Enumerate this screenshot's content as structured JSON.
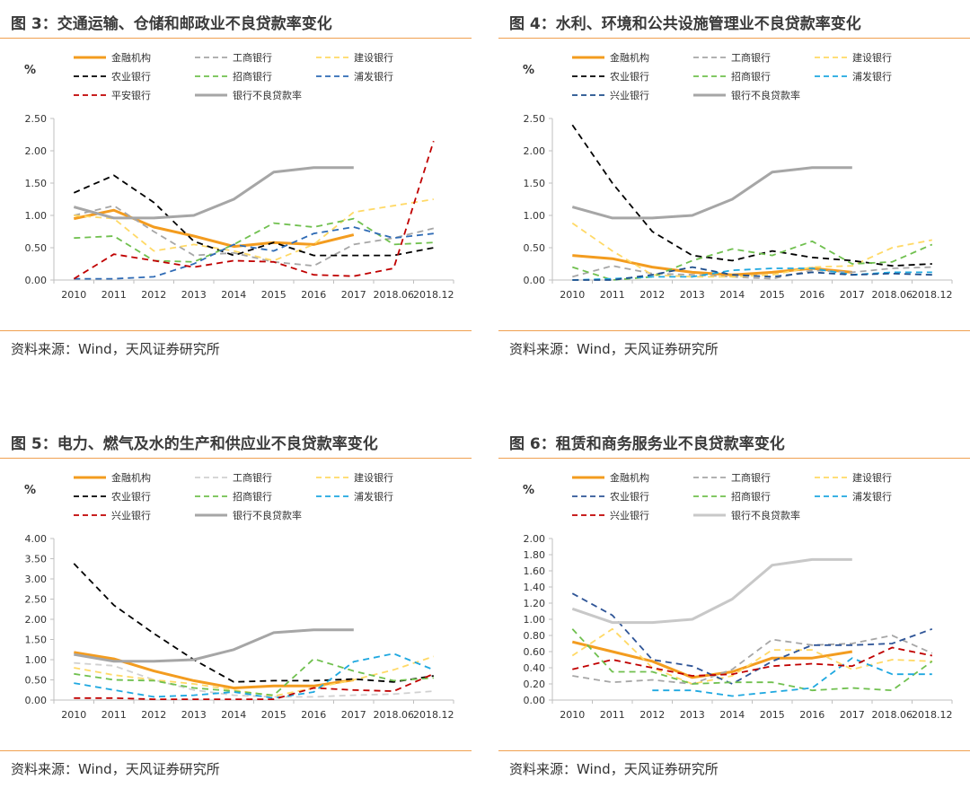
{
  "panels": [
    {
      "title": "图 3：交通运输、仓储和邮政业不良贷款率变化",
      "source": "资料来源：Wind，天风证券研究所",
      "chart_data": {
        "type": "line",
        "ylabel": "%",
        "ylim": [
          0,
          2.5
        ],
        "yticks": [
          "0.00",
          "0.50",
          "1.00",
          "1.50",
          "2.00",
          "2.50"
        ],
        "categories": [
          "2010",
          "2011",
          "2012",
          "2013",
          "2014",
          "2015",
          "2016",
          "2017",
          "2018.06",
          "2018.12"
        ],
        "series": [
          {
            "name": "金融机构",
            "color": "#f39c1f",
            "dash": "solid",
            "width": 3,
            "values": [
              0.95,
              1.08,
              0.82,
              0.68,
              0.52,
              0.58,
              0.55,
              0.7,
              null,
              null
            ]
          },
          {
            "name": "工商银行",
            "color": "#a6a6a6",
            "dash": "dashed",
            "width": 1.8,
            "values": [
              1.0,
              1.15,
              0.75,
              0.38,
              0.42,
              0.28,
              0.22,
              0.55,
              0.65,
              0.8
            ]
          },
          {
            "name": "建设银行",
            "color": "#ffd966",
            "dash": "dashed",
            "width": 1.8,
            "values": [
              1.0,
              0.95,
              0.45,
              0.55,
              0.45,
              0.3,
              0.55,
              1.05,
              1.15,
              1.25
            ]
          },
          {
            "name": "农业银行",
            "color": "#000000",
            "dash": "dashed",
            "width": 1.8,
            "values": [
              1.35,
              1.62,
              1.2,
              0.6,
              0.38,
              0.58,
              0.38,
              0.38,
              0.38,
              0.5
            ]
          },
          {
            "name": "招商银行",
            "color": "#70c04f",
            "dash": "dashed",
            "width": 1.8,
            "values": [
              0.65,
              0.68,
              0.3,
              0.28,
              0.55,
              0.88,
              0.82,
              0.95,
              0.55,
              0.58
            ]
          },
          {
            "name": "浦发银行",
            "color": "#2f6bb5",
            "dash": "dashed",
            "width": 1.8,
            "values": [
              0.02,
              0.02,
              0.05,
              0.25,
              0.55,
              0.45,
              0.72,
              0.82,
              0.65,
              0.72
            ]
          },
          {
            "name": "平安银行",
            "color": "#c00000",
            "dash": "dashed",
            "width": 1.8,
            "values": [
              0.02,
              0.4,
              0.3,
              0.2,
              0.3,
              0.28,
              0.08,
              0.06,
              0.18,
              2.15
            ]
          },
          {
            "name": "银行不良贷款率",
            "color": "#a6a6a6",
            "dash": "solid",
            "width": 3,
            "values": [
              1.13,
              0.96,
              0.96,
              1.0,
              1.25,
              1.67,
              1.74,
              1.74,
              null,
              null
            ]
          }
        ]
      }
    },
    {
      "title": "图 4：水利、环境和公共设施管理业不良贷款率变化",
      "source": "资料来源：Wind，天风证券研究所",
      "chart_data": {
        "type": "line",
        "ylabel": "%",
        "ylim": [
          0,
          2.5
        ],
        "yticks": [
          "0.00",
          "0.50",
          "1.00",
          "1.50",
          "2.00",
          "2.50"
        ],
        "categories": [
          "2010",
          "2011",
          "2012",
          "2013",
          "2014",
          "2015",
          "2016",
          "2017",
          "2018.06",
          "2018.12"
        ],
        "series": [
          {
            "name": "金融机构",
            "color": "#f39c1f",
            "dash": "solid",
            "width": 3,
            "values": [
              0.38,
              0.33,
              0.2,
              0.12,
              0.08,
              0.12,
              0.18,
              0.12,
              null,
              null
            ]
          },
          {
            "name": "工商银行",
            "color": "#a6a6a6",
            "dash": "dashed",
            "width": 1.8,
            "values": [
              0.05,
              0.22,
              0.1,
              0.08,
              0.05,
              0.02,
              0.15,
              0.12,
              0.18,
              0.2
            ]
          },
          {
            "name": "建设银行",
            "color": "#ffd966",
            "dash": "dashed",
            "width": 1.8,
            "values": [
              0.88,
              0.45,
              0.08,
              0.05,
              0.05,
              0.08,
              0.2,
              0.22,
              0.5,
              0.62
            ]
          },
          {
            "name": "农业银行",
            "color": "#000000",
            "dash": "dashed",
            "width": 1.8,
            "values": [
              2.4,
              1.5,
              0.75,
              0.38,
              0.3,
              0.45,
              0.35,
              0.3,
              0.22,
              0.25
            ]
          },
          {
            "name": "招商银行",
            "color": "#70c04f",
            "dash": "dashed",
            "width": 1.8,
            "values": [
              0.2,
              0.0,
              0.05,
              0.3,
              0.48,
              0.38,
              0.6,
              0.25,
              0.28,
              0.55
            ]
          },
          {
            "name": "浦发银行",
            "color": "#1fa8e0",
            "dash": "dashed",
            "width": 1.8,
            "values": [
              0.0,
              0.02,
              0.05,
              0.05,
              0.15,
              0.18,
              0.18,
              0.08,
              0.12,
              0.12
            ]
          },
          {
            "name": "兴业银行",
            "color": "#1f4e8c",
            "dash": "dashed",
            "width": 1.8,
            "values": [
              0.0,
              0.0,
              0.08,
              0.2,
              0.08,
              0.05,
              0.12,
              0.08,
              0.1,
              0.08
            ]
          },
          {
            "name": "银行不良贷款率",
            "color": "#a6a6a6",
            "dash": "solid",
            "width": 3,
            "values": [
              1.13,
              0.96,
              0.96,
              1.0,
              1.25,
              1.67,
              1.74,
              1.74,
              null,
              null
            ]
          }
        ]
      }
    },
    {
      "title": "图 5：电力、燃气及水的生产和供应业不良贷款率变化",
      "source": "资料来源：Wind，天风证券研究所",
      "chart_data": {
        "type": "line",
        "ylabel": "%",
        "ylim": [
          0,
          4.0
        ],
        "yticks": [
          "0.00",
          "0.50",
          "1.00",
          "1.50",
          "2.00",
          "2.50",
          "3.00",
          "3.50",
          "4.00"
        ],
        "categories": [
          "2010",
          "2011",
          "2012",
          "2013",
          "2014",
          "2015",
          "2016",
          "2017",
          "2018.06",
          "2018.12"
        ],
        "series": [
          {
            "name": "金融机构",
            "color": "#f39c1f",
            "dash": "solid",
            "width": 3,
            "values": [
              1.18,
              1.02,
              0.72,
              0.48,
              0.3,
              0.35,
              0.35,
              0.5,
              null,
              null
            ]
          },
          {
            "name": "工商银行",
            "color": "#d0d0d0",
            "dash": "dashed",
            "width": 1.8,
            "values": [
              0.92,
              0.85,
              0.5,
              0.25,
              0.12,
              0.08,
              0.08,
              0.12,
              0.15,
              0.22
            ]
          },
          {
            "name": "建设银行",
            "color": "#ffd966",
            "dash": "dashed",
            "width": 1.8,
            "values": [
              0.8,
              0.62,
              0.5,
              0.4,
              0.25,
              0.1,
              0.3,
              0.5,
              0.75,
              1.08
            ]
          },
          {
            "name": "农业银行",
            "color": "#000000",
            "dash": "dashed",
            "width": 1.8,
            "values": [
              3.38,
              2.35,
              1.65,
              1.0,
              0.45,
              0.48,
              0.48,
              0.52,
              0.45,
              0.6
            ]
          },
          {
            "name": "招商银行",
            "color": "#70c04f",
            "dash": "dashed",
            "width": 1.8,
            "values": [
              0.65,
              0.5,
              0.48,
              0.3,
              0.22,
              0.12,
              1.02,
              0.72,
              0.48,
              0.55
            ]
          },
          {
            "name": "浦发银行",
            "color": "#1fa8e0",
            "dash": "dashed",
            "width": 1.8,
            "values": [
              0.42,
              0.25,
              0.08,
              0.12,
              0.2,
              0.05,
              0.2,
              0.95,
              1.15,
              0.75
            ]
          },
          {
            "name": "兴业银行",
            "color": "#c00000",
            "dash": "dashed",
            "width": 1.8,
            "values": [
              0.05,
              0.05,
              0.02,
              0.02,
              0.02,
              0.02,
              0.3,
              0.25,
              0.22,
              0.65
            ]
          },
          {
            "name": "银行不良贷款率",
            "color": "#a6a6a6",
            "dash": "solid",
            "width": 3,
            "values": [
              1.13,
              0.96,
              0.96,
              1.0,
              1.25,
              1.67,
              1.74,
              1.74,
              null,
              null
            ]
          }
        ]
      }
    },
    {
      "title": "图 6：租赁和商务服务业不良贷款率变化",
      "source": "资料来源：Wind，天风证券研究所",
      "chart_data": {
        "type": "line",
        "ylabel": "%",
        "ylim": [
          0,
          2.0
        ],
        "yticks": [
          "0.00",
          "0.20",
          "0.40",
          "0.60",
          "0.80",
          "1.00",
          "1.20",
          "1.40",
          "1.60",
          "1.80",
          "2.00"
        ],
        "categories": [
          "2010",
          "2011",
          "2012",
          "2013",
          "2014",
          "2015",
          "2016",
          "2017",
          "2018.06",
          "2018.12"
        ],
        "series": [
          {
            "name": "金融机构",
            "color": "#f39c1f",
            "dash": "solid",
            "width": 3,
            "values": [
              0.72,
              0.6,
              0.48,
              0.28,
              0.35,
              0.52,
              0.52,
              0.6,
              null,
              null
            ]
          },
          {
            "name": "工商银行",
            "color": "#a6a6a6",
            "dash": "dashed",
            "width": 1.8,
            "values": [
              0.3,
              0.22,
              0.25,
              0.2,
              0.38,
              0.75,
              0.68,
              0.7,
              0.8,
              0.58
            ]
          },
          {
            "name": "建设银行",
            "color": "#ffd966",
            "dash": "dashed",
            "width": 1.8,
            "values": [
              0.55,
              0.88,
              0.4,
              0.2,
              0.3,
              0.62,
              0.62,
              0.38,
              0.5,
              0.48
            ]
          },
          {
            "name": "农业银行",
            "color": "#2f5597",
            "dash": "dashed",
            "width": 1.8,
            "values": [
              1.32,
              1.05,
              0.5,
              0.42,
              0.2,
              0.48,
              0.68,
              0.68,
              0.7,
              0.88
            ]
          },
          {
            "name": "招商银行",
            "color": "#70c04f",
            "dash": "dashed",
            "width": 1.8,
            "values": [
              0.88,
              0.35,
              0.35,
              0.2,
              0.22,
              0.22,
              0.12,
              0.15,
              0.12,
              0.48
            ]
          },
          {
            "name": "浦发银行",
            "color": "#1fa8e0",
            "dash": "dashed",
            "width": 1.8,
            "values": [
              null,
              null,
              0.12,
              0.12,
              0.05,
              0.1,
              0.15,
              0.52,
              0.32,
              0.32
            ]
          },
          {
            "name": "兴业银行",
            "color": "#c00000",
            "dash": "dashed",
            "width": 1.8,
            "values": [
              0.38,
              0.5,
              0.4,
              0.3,
              0.32,
              0.42,
              0.45,
              0.42,
              0.65,
              0.55
            ]
          },
          {
            "name": "银行不良贷款率",
            "color": "#c8c8c8",
            "dash": "solid",
            "width": 3,
            "values": [
              1.13,
              0.96,
              0.96,
              1.0,
              1.25,
              1.67,
              1.74,
              1.74,
              null,
              null
            ]
          }
        ]
      }
    }
  ]
}
